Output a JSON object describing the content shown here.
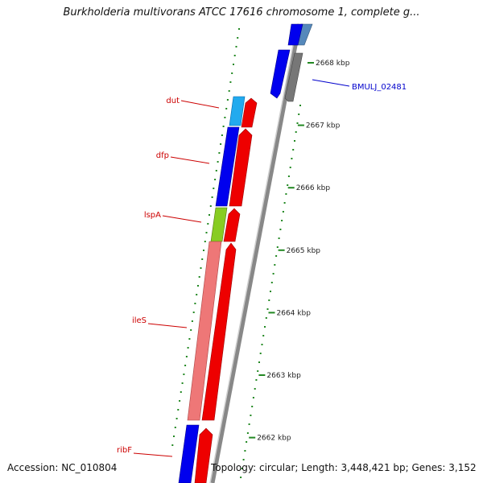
{
  "header": {
    "title": "Burkholderia multivorans ATCC 17616 chromosome 1, complete g..."
  },
  "footer": {
    "accession": "Accession: NC_010804",
    "summary": "Topology: circular; Length: 3,448,421 bp; Genes: 3,152"
  },
  "ticks": [
    {
      "label": "2668 kbp",
      "position_kbp": 2668
    },
    {
      "label": "2667 kbp",
      "position_kbp": 2667
    },
    {
      "label": "2666 kbp",
      "position_kbp": 2666
    },
    {
      "label": "2665 kbp",
      "position_kbp": 2665
    },
    {
      "label": "2664 kbp",
      "position_kbp": 2664
    },
    {
      "label": "2663 kbp",
      "position_kbp": 2663
    },
    {
      "label": "2662 kbp",
      "position_kbp": 2662
    }
  ],
  "gene_labels": [
    {
      "name": "dut"
    },
    {
      "name": "dfp"
    },
    {
      "name": "lspA"
    },
    {
      "name": "ileS"
    },
    {
      "name": "ribF"
    }
  ],
  "locus_labels": [
    {
      "name": "BMULJ_02481"
    }
  ],
  "colors": {
    "gene_label": "#cc0000",
    "locus_label": "#0000cc",
    "blue_feature": "#0000ee",
    "red_feature": "#ee0000",
    "light_blue_feature": "#22aaee",
    "steel_feature": "#5588bb",
    "grey_feature": "#777777",
    "lime_feature": "#88cc22",
    "pink_feature": "#ee7777",
    "tick_mark": "#228822",
    "backbone": "#888888"
  }
}
